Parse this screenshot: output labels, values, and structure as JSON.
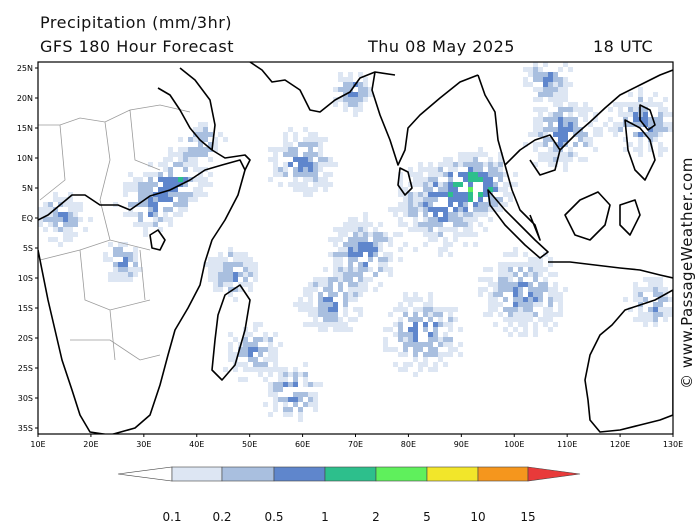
{
  "header": {
    "title": "Precipitation (mm/3hr)",
    "subtitle": "GFS 180 Hour Forecast",
    "date": "Thu 08 May 2025",
    "time": "18 UTC"
  },
  "watermark": "© www.PassageWeather.com",
  "map": {
    "lon_range": [
      10,
      130
    ],
    "lat_range": [
      -36,
      26
    ],
    "lat_labels": [
      "25N",
      "20N",
      "15N",
      "10N",
      "5N",
      "EQ",
      "5S",
      "10S",
      "15S",
      "20S",
      "25S",
      "30S",
      "35S"
    ],
    "lat_values": [
      25,
      20,
      15,
      10,
      5,
      0,
      -5,
      -10,
      -15,
      -20,
      -25,
      -30,
      -35
    ],
    "lon_labels": [
      "10E",
      "20E",
      "30E",
      "40E",
      "50E",
      "60E",
      "70E",
      "80E",
      "90E",
      "100E",
      "110E",
      "120E",
      "130E"
    ],
    "lon_values": [
      10,
      20,
      30,
      40,
      50,
      60,
      70,
      80,
      90,
      100,
      110,
      120,
      130
    ],
    "land_outline_color": "#000000",
    "border_color": "#9a9a9a"
  },
  "colorbar": {
    "labels": [
      "0.1",
      "0.2",
      "0.5",
      "1",
      "2",
      "5",
      "10",
      "15"
    ],
    "colors": [
      "#ffffff",
      "#dde6f3",
      "#a9bfdf",
      "#5f86cc",
      "#2dbf8c",
      "#5ff05c",
      "#f2e62a",
      "#f5961d",
      "#e83a3a"
    ]
  },
  "precip_colors": [
    "#dde6f3",
    "#a9bfdf",
    "#5f86cc",
    "#2dbf8c",
    "#5ff05c",
    "#f2e62a",
    "#f5961d",
    "#e83a3a"
  ]
}
